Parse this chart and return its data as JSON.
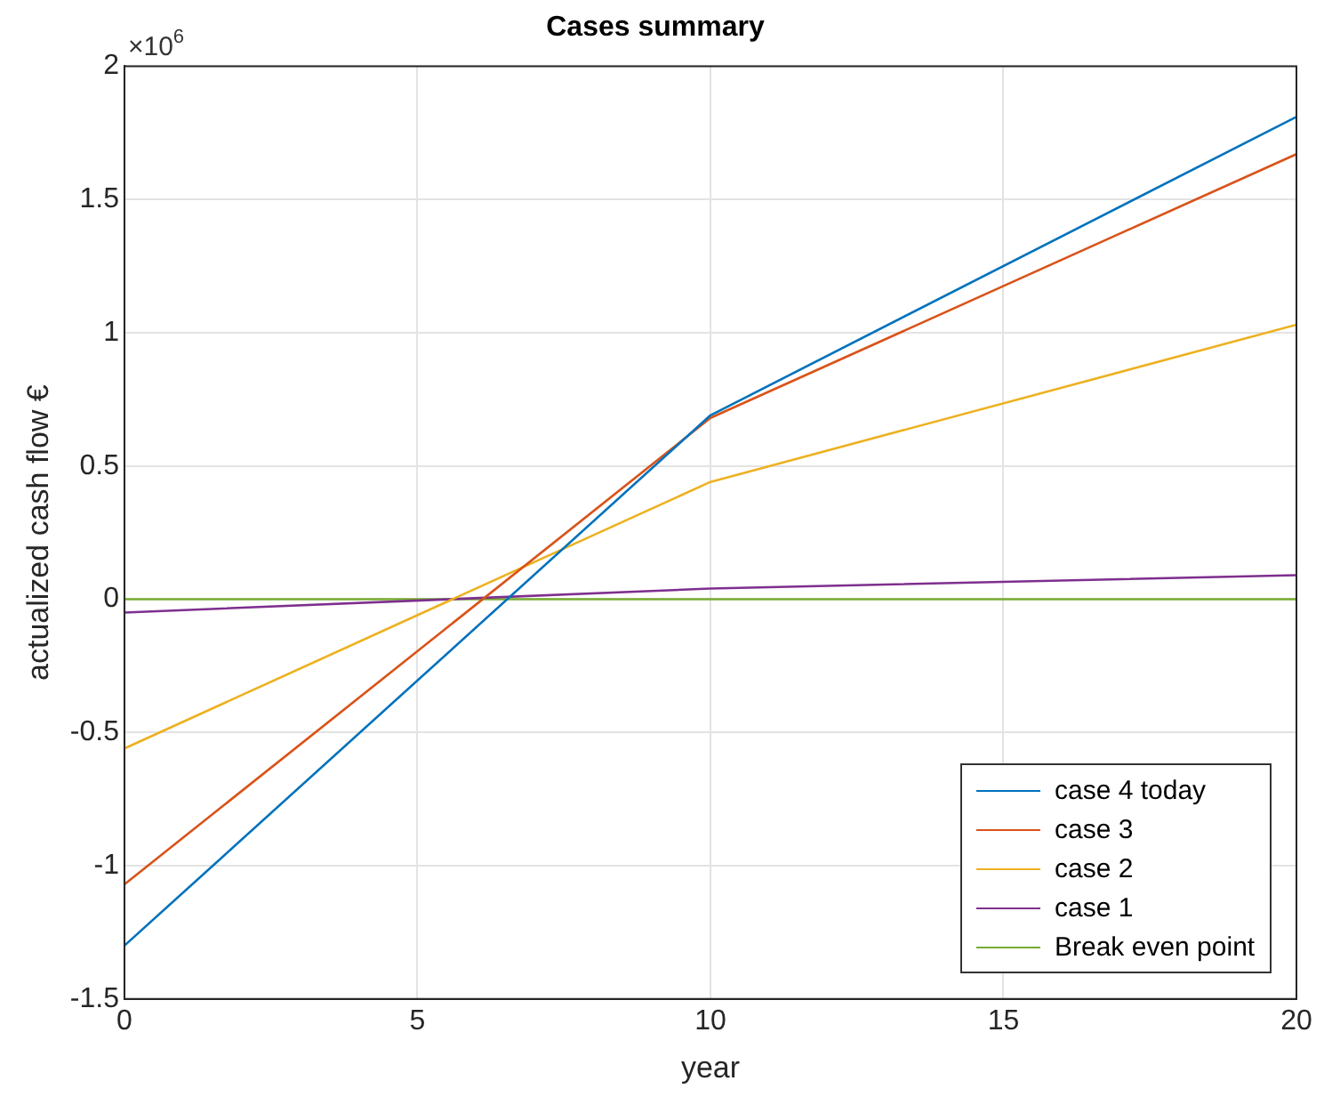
{
  "chart_data": {
    "type": "line",
    "title": "Cases summary",
    "xlabel": "year",
    "ylabel": "actualized cash flow €",
    "annotations": [
      "×10$^{6}$"
    ],
    "x": [
      0,
      10,
      20
    ],
    "series": [
      {
        "name": "case 4 today",
        "color": "#0072bd",
        "values": [
          -1.3,
          0.69,
          1.81
        ]
      },
      {
        "name": "case 3",
        "color": "#d95319",
        "values": [
          -1.07,
          0.68,
          1.67
        ]
      },
      {
        "name": "case 2",
        "color": "#edb120",
        "values": [
          -0.56,
          0.44,
          1.03
        ]
      },
      {
        "name": "case 1",
        "color": "#7e2f8e",
        "values": [
          -0.05,
          0.04,
          0.09
        ]
      },
      {
        "name": "Break even point",
        "color": "#77ac30",
        "values": [
          0,
          0,
          0
        ]
      }
    ],
    "xlim": [
      0,
      20
    ],
    "xticks": [
      0,
      5,
      10,
      15,
      20
    ],
    "ylim": [
      -1.5,
      2
    ],
    "yticks": [
      -1.5,
      -1,
      -0.5,
      0,
      0.5,
      1,
      1.5,
      2
    ],
    "grid": true,
    "legend": "bottom right",
    "marker": "none",
    "line_style": "solid"
  }
}
